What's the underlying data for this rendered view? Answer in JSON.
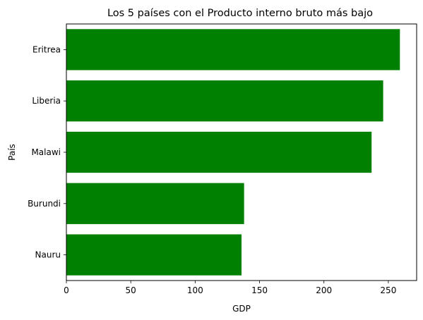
{
  "chart_data": {
    "type": "bar",
    "orientation": "horizontal",
    "title": "Los 5 países con el Producto interno bruto más bajo",
    "xlabel": "GDP",
    "ylabel": "País",
    "categories": [
      "Nauru",
      "Burundi",
      "Malawi",
      "Liberia",
      "Eritrea"
    ],
    "values": [
      136,
      138,
      237,
      246,
      259
    ],
    "xlim": [
      0,
      272
    ],
    "xticks": [
      0,
      50,
      100,
      150,
      200,
      250
    ],
    "bar_color": "#008000",
    "grid": false,
    "legend": "none"
  }
}
